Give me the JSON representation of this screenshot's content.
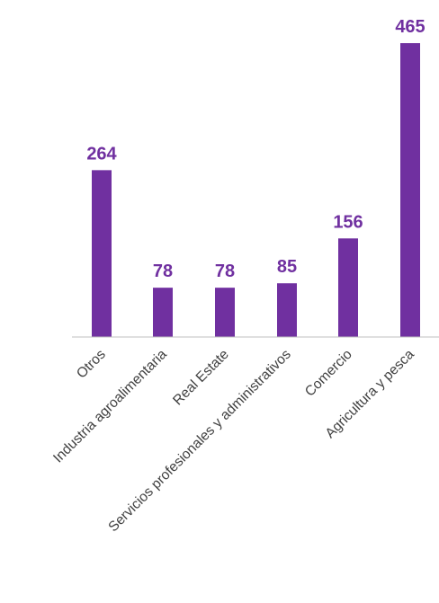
{
  "colors": {
    "bar": "#7030a0",
    "value_label": "#7030a0",
    "axis": "#bfbfbf",
    "category_label": "#404040"
  },
  "chart_data": {
    "type": "bar",
    "categories": [
      "Otros",
      "Industria agroalimentaria",
      "Real Estate",
      "Servicios profesionales y administrativos",
      "Comercio",
      "Agricultura y pesca"
    ],
    "values": [
      264,
      78,
      78,
      85,
      156,
      465
    ],
    "data_labels": [
      "264",
      "78",
      "78",
      "85",
      "156",
      "465"
    ],
    "ylim": [
      0,
      465
    ],
    "grid": false,
    "legend": "none"
  }
}
